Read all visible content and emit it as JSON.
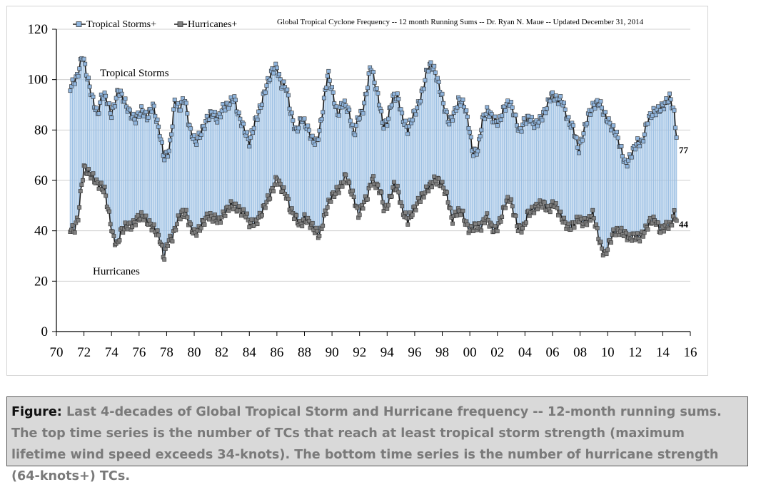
{
  "chart_data": {
    "type": "line",
    "title": "Global Tropical Cyclone Frequency -- 12 month Running Sums -- Dr. Ryan N. Maue -- Updated December 31, 2014",
    "xlim": [
      1970,
      2016
    ],
    "ylim": [
      0,
      120
    ],
    "xticks": [
      "70",
      "72",
      "74",
      "76",
      "78",
      "80",
      "82",
      "84",
      "86",
      "88",
      "90",
      "92",
      "94",
      "96",
      "98",
      "00",
      "02",
      "04",
      "06",
      "08",
      "10",
      "12",
      "14",
      "16"
    ],
    "yticks": [
      "0",
      "20",
      "40",
      "60",
      "80",
      "100",
      "120"
    ],
    "grid": "horizontal",
    "legend_position": "top-left",
    "legend": [
      "Tropical Storms+",
      "Hurricanes+"
    ],
    "fill_between_series": true,
    "colors": {
      "tropical_storms": "#8fb4dc",
      "ts_line": "#1a1a1a",
      "hurricanes": "#808080",
      "fill": "#9bbfe3"
    },
    "series": [
      {
        "name": "Tropical Storms+",
        "label": "Tropical Storms",
        "end_label": "77",
        "points": [
          [
            1971.0,
            97
          ],
          [
            1971.5,
            101
          ],
          [
            1971.9,
            110
          ],
          [
            1972.2,
            102
          ],
          [
            1972.7,
            91
          ],
          [
            1973.0,
            86
          ],
          [
            1973.3,
            94
          ],
          [
            1973.6,
            93
          ],
          [
            1974.0,
            86
          ],
          [
            1974.5,
            96
          ],
          [
            1974.9,
            92
          ],
          [
            1975.3,
            87
          ],
          [
            1975.7,
            84
          ],
          [
            1976.2,
            88
          ],
          [
            1976.6,
            85
          ],
          [
            1977.0,
            90
          ],
          [
            1977.5,
            79
          ],
          [
            1977.8,
            69
          ],
          [
            1978.2,
            72
          ],
          [
            1978.6,
            92
          ],
          [
            1978.9,
            88
          ],
          [
            1979.3,
            93
          ],
          [
            1979.7,
            80
          ],
          [
            1980.1,
            75
          ],
          [
            1980.5,
            79
          ],
          [
            1980.9,
            84
          ],
          [
            1981.3,
            87
          ],
          [
            1981.7,
            84
          ],
          [
            1982.1,
            89
          ],
          [
            1982.5,
            90
          ],
          [
            1982.9,
            93
          ],
          [
            1983.2,
            86
          ],
          [
            1983.6,
            81
          ],
          [
            1984.0,
            75
          ],
          [
            1984.4,
            83
          ],
          [
            1984.8,
            89
          ],
          [
            1985.2,
            97
          ],
          [
            1985.7,
            104
          ],
          [
            1986.0,
            105
          ],
          [
            1986.3,
            98
          ],
          [
            1986.7,
            97
          ],
          [
            1987.0,
            87
          ],
          [
            1987.4,
            79
          ],
          [
            1987.8,
            85
          ],
          [
            1988.2,
            81
          ],
          [
            1988.6,
            76
          ],
          [
            1988.9,
            75
          ],
          [
            1989.2,
            83
          ],
          [
            1989.7,
            103
          ],
          [
            1990.0,
            96
          ],
          [
            1990.4,
            86
          ],
          [
            1990.8,
            91
          ],
          [
            1991.2,
            88
          ],
          [
            1991.6,
            78
          ],
          [
            1991.9,
            85
          ],
          [
            1992.2,
            87
          ],
          [
            1992.5,
            95
          ],
          [
            1992.8,
            106
          ],
          [
            1993.1,
            99
          ],
          [
            1993.4,
            92
          ],
          [
            1993.7,
            82
          ],
          [
            1994.0,
            83
          ],
          [
            1994.4,
            93
          ],
          [
            1994.8,
            93
          ],
          [
            1995.1,
            85
          ],
          [
            1995.5,
            80
          ],
          [
            1995.9,
            86
          ],
          [
            1996.2,
            89
          ],
          [
            1996.6,
            96
          ],
          [
            1996.9,
            104
          ],
          [
            1997.2,
            106
          ],
          [
            1997.5,
            103
          ],
          [
            1997.9,
            95
          ],
          [
            1998.2,
            88
          ],
          [
            1998.5,
            83
          ],
          [
            1998.9,
            87
          ],
          [
            1999.2,
            92
          ],
          [
            1999.6,
            90
          ],
          [
            1999.9,
            83
          ],
          [
            2000.2,
            71
          ],
          [
            2000.6,
            72
          ],
          [
            2000.9,
            84
          ],
          [
            2001.3,
            88
          ],
          [
            2001.7,
            84
          ],
          [
            2002.1,
            83
          ],
          [
            2002.5,
            89
          ],
          [
            2002.9,
            91
          ],
          [
            2003.2,
            87
          ],
          [
            2003.6,
            79
          ],
          [
            2003.9,
            83
          ],
          [
            2004.3,
            85
          ],
          [
            2004.7,
            82
          ],
          [
            2005.1,
            84
          ],
          [
            2005.5,
            88
          ],
          [
            2005.9,
            94
          ],
          [
            2006.3,
            92
          ],
          [
            2006.7,
            92
          ],
          [
            2007.1,
            84
          ],
          [
            2007.5,
            81
          ],
          [
            2007.9,
            72
          ],
          [
            2008.2,
            78
          ],
          [
            2008.6,
            86
          ],
          [
            2009.0,
            90
          ],
          [
            2009.4,
            91
          ],
          [
            2009.8,
            86
          ],
          [
            2010.2,
            82
          ],
          [
            2010.6,
            79
          ],
          [
            2011.0,
            72
          ],
          [
            2011.3,
            66
          ],
          [
            2011.7,
            70
          ],
          [
            2012.1,
            75
          ],
          [
            2012.5,
            75
          ],
          [
            2012.9,
            84
          ],
          [
            2013.3,
            87
          ],
          [
            2013.7,
            88
          ],
          [
            2014.1,
            90
          ],
          [
            2014.5,
            93
          ],
          [
            2014.8,
            88
          ],
          [
            2015.0,
            77
          ]
        ]
      },
      {
        "name": "Hurricanes+",
        "label": "Hurricanes",
        "end_label": "44",
        "points": [
          [
            1971.0,
            41
          ],
          [
            1971.3,
            40
          ],
          [
            1971.6,
            46
          ],
          [
            1971.8,
            57
          ],
          [
            1972.0,
            65
          ],
          [
            1972.3,
            63
          ],
          [
            1972.6,
            62
          ],
          [
            1972.9,
            59
          ],
          [
            1973.2,
            58
          ],
          [
            1973.5,
            56
          ],
          [
            1973.8,
            47
          ],
          [
            1974.1,
            38
          ],
          [
            1974.4,
            34
          ],
          [
            1974.7,
            40
          ],
          [
            1975.1,
            42
          ],
          [
            1975.5,
            42
          ],
          [
            1975.9,
            45
          ],
          [
            1976.3,
            46
          ],
          [
            1976.7,
            43
          ],
          [
            1977.1,
            41
          ],
          [
            1977.5,
            37
          ],
          [
            1977.8,
            29
          ],
          [
            1978.1,
            36
          ],
          [
            1978.4,
            37
          ],
          [
            1978.8,
            44
          ],
          [
            1979.1,
            47
          ],
          [
            1979.4,
            47
          ],
          [
            1979.7,
            42
          ],
          [
            1980.0,
            39
          ],
          [
            1980.3,
            40
          ],
          [
            1980.6,
            43
          ],
          [
            1981.0,
            46
          ],
          [
            1981.4,
            45
          ],
          [
            1981.8,
            44
          ],
          [
            1982.2,
            47
          ],
          [
            1982.6,
            50
          ],
          [
            1982.9,
            50
          ],
          [
            1983.3,
            48
          ],
          [
            1983.7,
            47
          ],
          [
            1984.0,
            43
          ],
          [
            1984.4,
            43
          ],
          [
            1984.8,
            46
          ],
          [
            1985.2,
            51
          ],
          [
            1985.6,
            55
          ],
          [
            1986.0,
            61
          ],
          [
            1986.3,
            57
          ],
          [
            1986.7,
            54
          ],
          [
            1987.0,
            48
          ],
          [
            1987.3,
            46
          ],
          [
            1987.7,
            42
          ],
          [
            1988.0,
            45
          ],
          [
            1988.4,
            43
          ],
          [
            1988.8,
            40
          ],
          [
            1989.1,
            38
          ],
          [
            1989.5,
            47
          ],
          [
            1989.9,
            53
          ],
          [
            1990.2,
            55
          ],
          [
            1990.6,
            57
          ],
          [
            1991.0,
            62
          ],
          [
            1991.3,
            57
          ],
          [
            1991.6,
            53
          ],
          [
            1991.9,
            46
          ],
          [
            1992.2,
            50
          ],
          [
            1992.6,
            54
          ],
          [
            1992.9,
            61
          ],
          [
            1993.2,
            58
          ],
          [
            1993.5,
            56
          ],
          [
            1993.8,
            48
          ],
          [
            1994.1,
            51
          ],
          [
            1994.5,
            58
          ],
          [
            1994.8,
            56
          ],
          [
            1995.1,
            48
          ],
          [
            1995.5,
            44
          ],
          [
            1995.9,
            48
          ],
          [
            1996.3,
            52
          ],
          [
            1996.7,
            55
          ],
          [
            1997.0,
            57
          ],
          [
            1997.4,
            60
          ],
          [
            1997.7,
            60
          ],
          [
            1998.1,
            57
          ],
          [
            1998.4,
            53
          ],
          [
            1998.7,
            44
          ],
          [
            1999.0,
            47
          ],
          [
            1999.4,
            48
          ],
          [
            1999.7,
            43
          ],
          [
            2000.0,
            40
          ],
          [
            2000.4,
            42
          ],
          [
            2000.8,
            41
          ],
          [
            2001.2,
            46
          ],
          [
            2001.6,
            41
          ],
          [
            2001.9,
            40
          ],
          [
            2002.2,
            44
          ],
          [
            2002.6,
            51
          ],
          [
            2002.9,
            53
          ],
          [
            2003.2,
            47
          ],
          [
            2003.5,
            41
          ],
          [
            2003.9,
            41
          ],
          [
            2004.2,
            47
          ],
          [
            2004.6,
            48
          ],
          [
            2004.9,
            50
          ],
          [
            2005.3,
            51
          ],
          [
            2005.7,
            48
          ],
          [
            2006.1,
            51
          ],
          [
            2006.5,
            47
          ],
          [
            2006.9,
            43
          ],
          [
            2007.2,
            41
          ],
          [
            2007.6,
            43
          ],
          [
            2007.9,
            45
          ],
          [
            2008.2,
            43
          ],
          [
            2008.6,
            44
          ],
          [
            2008.9,
            47
          ],
          [
            2009.2,
            41
          ],
          [
            2009.5,
            34
          ],
          [
            2009.8,
            30
          ],
          [
            2010.1,
            35
          ],
          [
            2010.4,
            39
          ],
          [
            2010.8,
            40
          ],
          [
            2011.2,
            39
          ],
          [
            2011.6,
            37
          ],
          [
            2011.9,
            38
          ],
          [
            2012.3,
            37
          ],
          [
            2012.7,
            40
          ],
          [
            2013.1,
            44
          ],
          [
            2013.5,
            44
          ],
          [
            2013.8,
            40
          ],
          [
            2014.2,
            42
          ],
          [
            2014.6,
            42
          ],
          [
            2014.8,
            47
          ],
          [
            2015.0,
            44
          ]
        ]
      }
    ]
  },
  "caption": {
    "prefix": "Figure:",
    "text": " Last 4-decades of Global Tropical Storm and Hurricane frequency -- 12-month running sums. The top time series is the number of TCs that reach at least tropical storm strength (maximum lifetime wind speed exceeds 34-knots). The bottom time series is the number of hurricane strength (64-knots+) TCs."
  }
}
